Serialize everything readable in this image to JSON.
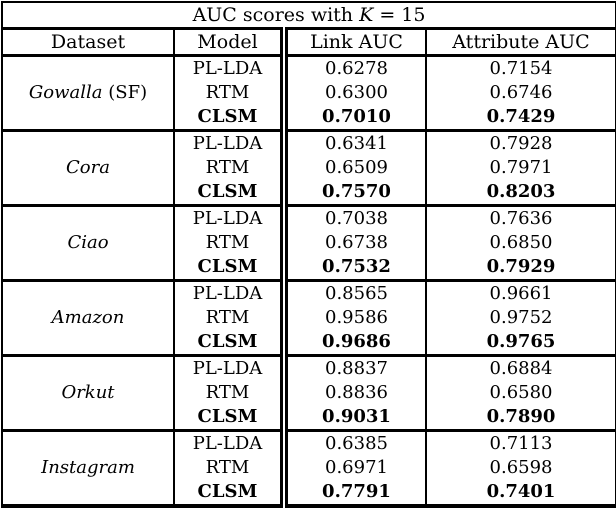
{
  "title": {
    "prefix": "AUC scores with ",
    "k": "K",
    "suffix": " = 15"
  },
  "columns": [
    "Dataset",
    "Model",
    "Link AUC",
    "Attribute AUC"
  ],
  "groups": [
    {
      "dataset": "Gowalla",
      "dataset_suffix": " (SF)",
      "rows": [
        {
          "model": "PL-LDA",
          "link_auc": "0.6278",
          "attribute_auc": "0.7154",
          "bold": false
        },
        {
          "model": "RTM",
          "link_auc": "0.6300",
          "attribute_auc": "0.6746",
          "bold": false
        },
        {
          "model": "CLSM",
          "link_auc": "0.7010",
          "attribute_auc": "0.7429",
          "bold": true
        }
      ]
    },
    {
      "dataset": "Cora",
      "dataset_suffix": "",
      "rows": [
        {
          "model": "PL-LDA",
          "link_auc": "0.6341",
          "attribute_auc": "0.7928",
          "bold": false
        },
        {
          "model": "RTM",
          "link_auc": "0.6509",
          "attribute_auc": "0.7971",
          "bold": false
        },
        {
          "model": "CLSM",
          "link_auc": "0.7570",
          "attribute_auc": "0.8203",
          "bold": true
        }
      ]
    },
    {
      "dataset": "Ciao",
      "dataset_suffix": "",
      "rows": [
        {
          "model": "PL-LDA",
          "link_auc": "0.7038",
          "attribute_auc": "0.7636",
          "bold": false
        },
        {
          "model": "RTM",
          "link_auc": "0.6738",
          "attribute_auc": "0.6850",
          "bold": false
        },
        {
          "model": "CLSM",
          "link_auc": "0.7532",
          "attribute_auc": "0.7929",
          "bold": true
        }
      ]
    },
    {
      "dataset": "Amazon",
      "dataset_suffix": "",
      "rows": [
        {
          "model": "PL-LDA",
          "link_auc": "0.8565",
          "attribute_auc": "0.9661",
          "bold": false
        },
        {
          "model": "RTM",
          "link_auc": "0.9586",
          "attribute_auc": "0.9752",
          "bold": false
        },
        {
          "model": "CLSM",
          "link_auc": "0.9686",
          "attribute_auc": "0.9765",
          "bold": true
        }
      ]
    },
    {
      "dataset": "Orkut",
      "dataset_suffix": "",
      "rows": [
        {
          "model": "PL-LDA",
          "link_auc": "0.8837",
          "attribute_auc": "0.6884",
          "bold": false
        },
        {
          "model": "RTM",
          "link_auc": "0.8836",
          "attribute_auc": "0.6580",
          "bold": false
        },
        {
          "model": "CLSM",
          "link_auc": "0.9031",
          "attribute_auc": "0.7890",
          "bold": true
        }
      ]
    },
    {
      "dataset": "Instagram",
      "dataset_suffix": "",
      "rows": [
        {
          "model": "PL-LDA",
          "link_auc": "0.6385",
          "attribute_auc": "0.7113",
          "bold": false
        },
        {
          "model": "RTM",
          "link_auc": "0.6971",
          "attribute_auc": "0.6598",
          "bold": false
        },
        {
          "model": "CLSM",
          "link_auc": "0.7791",
          "attribute_auc": "0.7401",
          "bold": true
        }
      ]
    }
  ],
  "colors": {
    "border": "#000000",
    "background": "#ffffff",
    "text": "#000000"
  }
}
